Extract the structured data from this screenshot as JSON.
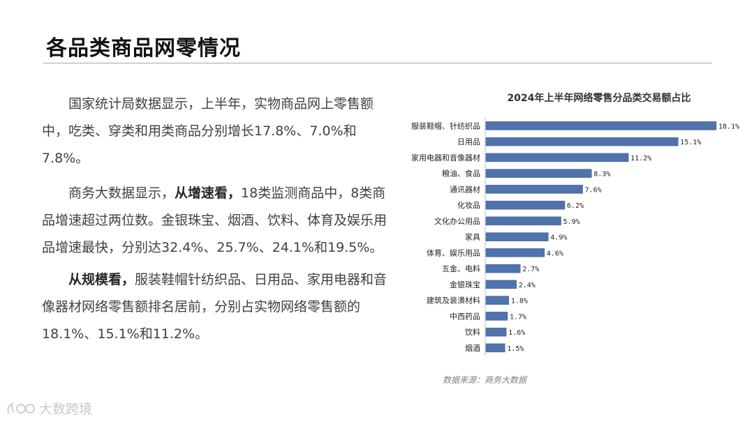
{
  "page": {
    "title": "各品类商品网零情况",
    "paragraph1": "国家统计局数据显示，上半年，实物商品网上零售额中，吃类、穿类和用类商品分别增长17.8%、7.0%和7.8%。",
    "paragraph2_prefix": "商务大数据显示，",
    "paragraph2_bold": "从增速看，",
    "paragraph2_rest": "18类监测商品中，8类商品增速超过两位数。金银珠宝、烟酒、饮料、体育及娱乐用品增速最快，分别达32.4%、25.7%、24.1%和19.5%。",
    "paragraph3_bold": "从规模看，",
    "paragraph3_rest": "服装鞋帽针纺织品、日用品、家用电器和音像器材网络零售额排名居前，分别占实物网络零售额的18.1%、15.1%和11.2%。",
    "source": "数据来源：商务大数据",
    "watermark": "大数跨境"
  },
  "colors": {
    "bar": "#4f73aa",
    "bar_stroke": "#3d5f93"
  },
  "chart_data": {
    "type": "bar",
    "orientation": "horizontal",
    "title": "2024年上半年网络零售分品类交易额占比",
    "unit": "%",
    "categories": [
      "服装鞋帽、针纺织品",
      "日用品",
      "家用电器和音像器材",
      "粮油、食品",
      "通讯器材",
      "化妆品",
      "文化办公用品",
      "家具",
      "体育、娱乐用品",
      "五金、电料",
      "金银珠宝",
      "建筑及装潢材料",
      "中西药品",
      "饮料",
      "烟酒"
    ],
    "values": [
      18.1,
      15.1,
      11.2,
      8.3,
      7.6,
      6.2,
      5.9,
      4.9,
      4.6,
      2.7,
      2.4,
      1.8,
      1.7,
      1.6,
      1.5
    ],
    "value_labels": [
      "18.1%",
      "15.1%",
      "11.2%",
      "8.3%",
      "7.6%",
      "6.2%",
      "5.9%",
      "4.9%",
      "4.6%",
      "2.7%",
      "2.4%",
      "1.8%",
      "1.7%",
      "1.6%",
      "1.5%"
    ],
    "xlim": [
      0,
      18.1
    ],
    "grid": false,
    "legend": "none"
  }
}
